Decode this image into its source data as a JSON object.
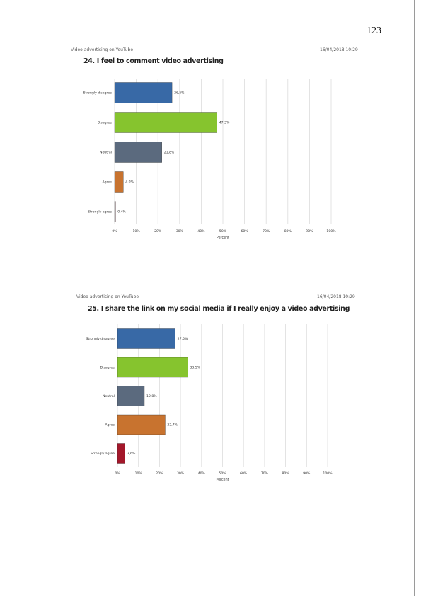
{
  "page": {
    "number": "123"
  },
  "sections": [
    {
      "header_left": "Video advertising on YouTube",
      "header_right": "16/04/2018 10:29",
      "title": "24. I feel to comment video advertising"
    },
    {
      "header_left": "Video advertising on YouTube",
      "header_right": "16/04/2018 10:29",
      "title": "25.  I share the link on my social media if I really enjoy a video advertising"
    }
  ],
  "chart_data": [
    {
      "type": "bar",
      "orientation": "horizontal",
      "categories": [
        "Strongly disagree",
        "Disagree",
        "Neutral",
        "Agree",
        "Strongly agree"
      ],
      "values": [
        26.5,
        47.3,
        21.8,
        4.0,
        0.4
      ],
      "value_labels": [
        "26,5%",
        "47,3%",
        "21,8%",
        "4,0%",
        "0,4%"
      ],
      "colors": [
        "#3869a6",
        "#86c42e",
        "#5b6a7e",
        "#c8732f",
        "#a3172a"
      ],
      "x_ticks": [
        "0%",
        "10%",
        "20%",
        "30%",
        "40%",
        "50%",
        "60%",
        "70%",
        "80%",
        "90%",
        "100%"
      ],
      "xlim": [
        0,
        100
      ],
      "xlabel": "Percent",
      "grid": true
    },
    {
      "type": "bar",
      "orientation": "horizontal",
      "categories": [
        "Strongly disagree",
        "Disagree",
        "Neutral",
        "Agree",
        "Strongly agree"
      ],
      "values": [
        27.5,
        33.5,
        12.8,
        22.7,
        3.6
      ],
      "value_labels": [
        "27,5%",
        "33,5%",
        "12,8%",
        "22,7%",
        "3,6%"
      ],
      "colors": [
        "#3869a6",
        "#86c42e",
        "#5b6a7e",
        "#c8732f",
        "#a3172a"
      ],
      "x_ticks": [
        "0%",
        "10%",
        "20%",
        "30%",
        "40%",
        "50%",
        "60%",
        "70%",
        "80%",
        "90%",
        "100%"
      ],
      "xlim": [
        0,
        100
      ],
      "xlabel": "Percent",
      "grid": true
    }
  ]
}
